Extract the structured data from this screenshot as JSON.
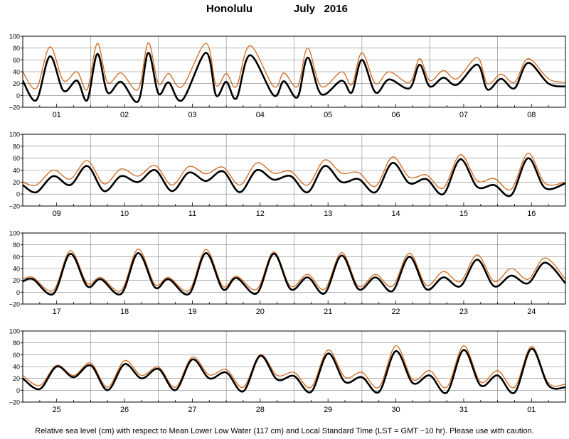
{
  "title": {
    "location": "Honolulu",
    "period": "July   2016"
  },
  "footer": "Relative sea level (cm) with respect to Mean Lower Low Water (117 cm) and Local Standard Time (LST = GMT −10 hr). Please use with caution.",
  "colors": {
    "predicted": "#000000",
    "observed": "#d2691e",
    "grid": "#808080",
    "frame": "#000000"
  },
  "chart_data": [
    {
      "type": "line",
      "panel": 1,
      "ylim": [
        -20,
        100
      ],
      "yticks": [
        -20,
        0,
        20,
        40,
        60,
        80,
        100
      ],
      "day_labels": [
        "01",
        "02",
        "03",
        "04",
        "05",
        "06",
        "07",
        "08"
      ],
      "x_unit": "day of July 2016 (fractional)",
      "x_range": [
        0.5,
        8.5
      ],
      "series": [
        {
          "key": "predicted",
          "x": [
            0.5,
            0.7,
            0.9,
            1.1,
            1.3,
            1.45,
            1.6,
            1.75,
            1.95,
            2.2,
            2.35,
            2.5,
            2.65,
            2.85,
            3.2,
            3.35,
            3.5,
            3.65,
            3.85,
            4.2,
            4.35,
            4.55,
            4.7,
            4.9,
            5.2,
            5.35,
            5.5,
            5.7,
            5.9,
            6.2,
            6.35,
            6.5,
            6.7,
            6.9,
            7.2,
            7.35,
            7.55,
            7.75,
            7.95,
            8.25,
            8.5
          ],
          "y": [
            25,
            -8,
            66,
            8,
            25,
            -8,
            70,
            5,
            23,
            -10,
            72,
            3,
            22,
            -8,
            72,
            0,
            23,
            -5,
            68,
            0,
            24,
            -3,
            64,
            2,
            25,
            5,
            60,
            5,
            27,
            12,
            52,
            15,
            30,
            18,
            52,
            10,
            28,
            12,
            55,
            20,
            15
          ]
        },
        {
          "key": "observed",
          "x": [
            0.5,
            0.7,
            0.9,
            1.1,
            1.3,
            1.45,
            1.6,
            1.75,
            1.95,
            2.2,
            2.35,
            2.5,
            2.65,
            2.85,
            3.2,
            3.35,
            3.5,
            3.65,
            3.85,
            4.2,
            4.35,
            4.55,
            4.7,
            4.9,
            5.2,
            5.35,
            5.5,
            5.7,
            5.9,
            6.2,
            6.35,
            6.5,
            6.7,
            6.9,
            7.2,
            7.35,
            7.55,
            7.75,
            7.95,
            8.25,
            8.5
          ],
          "y": [
            40,
            12,
            82,
            25,
            40,
            10,
            88,
            22,
            38,
            10,
            89,
            20,
            37,
            15,
            88,
            17,
            37,
            15,
            84,
            15,
            38,
            15,
            80,
            15,
            40,
            18,
            72,
            20,
            40,
            22,
            62,
            25,
            42,
            28,
            64,
            20,
            36,
            22,
            62,
            28,
            22
          ]
        }
      ]
    },
    {
      "type": "line",
      "panel": 2,
      "ylim": [
        -20,
        100
      ],
      "yticks": [
        -20,
        0,
        20,
        40,
        60,
        80,
        100
      ],
      "day_labels": [
        "09",
        "10",
        "11",
        "12",
        "13",
        "14",
        "15",
        "16"
      ],
      "x_unit": "day of July 2016 (fractional)",
      "x_range": [
        8.5,
        16.5
      ],
      "series": [
        {
          "key": "predicted",
          "x": [
            8.5,
            8.7,
            8.95,
            9.2,
            9.45,
            9.7,
            9.95,
            10.2,
            10.45,
            10.7,
            10.95,
            11.2,
            11.45,
            11.7,
            11.95,
            12.2,
            12.45,
            12.7,
            12.95,
            13.2,
            13.45,
            13.7,
            13.95,
            14.2,
            14.45,
            14.7,
            14.95,
            15.2,
            15.45,
            15.7,
            15.95,
            16.2,
            16.5
          ],
          "y": [
            15,
            3,
            30,
            15,
            47,
            5,
            30,
            20,
            40,
            5,
            36,
            22,
            38,
            3,
            40,
            24,
            30,
            3,
            47,
            20,
            25,
            3,
            52,
            18,
            25,
            0,
            58,
            12,
            15,
            -2,
            60,
            10,
            18
          ]
        },
        {
          "key": "observed",
          "x": [
            8.5,
            8.7,
            8.95,
            9.2,
            9.45,
            9.7,
            9.95,
            10.2,
            10.45,
            10.7,
            10.95,
            11.2,
            11.45,
            11.7,
            11.95,
            12.2,
            12.45,
            12.7,
            12.95,
            13.2,
            13.45,
            13.7,
            13.95,
            14.2,
            14.45,
            14.7,
            14.95,
            15.2,
            15.45,
            15.7,
            15.95,
            16.2,
            16.5
          ],
          "y": [
            20,
            15,
            40,
            25,
            56,
            17,
            42,
            30,
            48,
            15,
            46,
            34,
            45,
            15,
            52,
            35,
            38,
            15,
            57,
            35,
            36,
            13,
            62,
            28,
            32,
            10,
            66,
            22,
            26,
            8,
            68,
            18,
            20
          ]
        }
      ]
    },
    {
      "type": "line",
      "panel": 3,
      "ylim": [
        -20,
        100
      ],
      "yticks": [
        -20,
        0,
        20,
        40,
        60,
        80,
        100
      ],
      "day_labels": [
        "17",
        "18",
        "19",
        "20",
        "21",
        "22",
        "23",
        "24"
      ],
      "x_unit": "day of July 2016 (fractional)",
      "x_range": [
        16.5,
        24.5
      ],
      "series": [
        {
          "key": "predicted",
          "x": [
            16.5,
            16.65,
            16.95,
            17.2,
            17.45,
            17.65,
            17.95,
            18.2,
            18.45,
            18.65,
            18.95,
            19.2,
            19.45,
            19.65,
            19.95,
            20.2,
            20.45,
            20.7,
            20.95,
            21.2,
            21.45,
            21.7,
            21.95,
            22.2,
            22.45,
            22.7,
            22.95,
            23.2,
            23.45,
            23.7,
            23.95,
            24.2,
            24.5
          ],
          "y": [
            18,
            22,
            -3,
            65,
            10,
            22,
            -3,
            66,
            8,
            22,
            -3,
            66,
            5,
            24,
            -2,
            65,
            5,
            25,
            -2,
            62,
            5,
            25,
            2,
            60,
            5,
            25,
            10,
            55,
            10,
            28,
            15,
            50,
            15
          ]
        },
        {
          "key": "observed",
          "x": [
            16.5,
            16.65,
            16.95,
            17.2,
            17.45,
            17.65,
            17.95,
            18.2,
            18.45,
            18.65,
            18.95,
            19.2,
            19.45,
            19.65,
            19.95,
            20.2,
            20.45,
            20.7,
            20.95,
            21.2,
            21.45,
            21.7,
            21.95,
            22.2,
            22.45,
            22.7,
            22.95,
            23.2,
            23.45,
            23.7,
            23.95,
            24.2,
            24.5
          ],
          "y": [
            22,
            25,
            3,
            70,
            15,
            25,
            3,
            73,
            13,
            25,
            3,
            72,
            10,
            27,
            5,
            68,
            10,
            30,
            5,
            67,
            10,
            30,
            10,
            66,
            12,
            35,
            18,
            63,
            18,
            40,
            22,
            58,
            22
          ]
        }
      ]
    },
    {
      "type": "line",
      "panel": 4,
      "ylim": [
        -20,
        100
      ],
      "yticks": [
        -20,
        0,
        20,
        40,
        60,
        80,
        100
      ],
      "day_labels": [
        "25",
        "26",
        "27",
        "28",
        "29",
        "30",
        "31",
        "01"
      ],
      "x_unit": "day (24 Jul 2016 to 1 Aug 2016, fractional)",
      "x_range": [
        24.5,
        32.5
      ],
      "series": [
        {
          "key": "predicted",
          "x": [
            24.5,
            24.75,
            25.0,
            25.25,
            25.5,
            25.75,
            26.0,
            26.25,
            26.5,
            26.75,
            27.0,
            27.25,
            27.5,
            27.75,
            28.0,
            28.25,
            28.5,
            28.75,
            29.0,
            29.25,
            29.5,
            29.75,
            30.0,
            30.25,
            30.5,
            30.75,
            31.0,
            31.25,
            31.5,
            31.75,
            32.0,
            32.25,
            32.5
          ],
          "y": [
            20,
            2,
            40,
            22,
            42,
            0,
            44,
            20,
            36,
            0,
            52,
            20,
            30,
            -2,
            58,
            18,
            24,
            -3,
            62,
            14,
            22,
            -3,
            66,
            12,
            25,
            -4,
            68,
            8,
            25,
            -4,
            70,
            8,
            5
          ]
        },
        {
          "key": "observed",
          "x": [
            24.5,
            24.75,
            25.0,
            25.25,
            25.5,
            25.75,
            26.0,
            26.25,
            26.5,
            26.75,
            27.0,
            27.25,
            27.5,
            27.75,
            28.0,
            28.25,
            28.5,
            28.75,
            29.0,
            29.25,
            29.5,
            29.75,
            30.0,
            30.25,
            30.5,
            30.75,
            31.0,
            31.25,
            31.5,
            31.75,
            32.0,
            32.25,
            32.5
          ],
          "y": [
            25,
            8,
            42,
            25,
            46,
            5,
            50,
            25,
            39,
            5,
            56,
            26,
            35,
            5,
            60,
            25,
            30,
            5,
            68,
            22,
            30,
            5,
            75,
            18,
            33,
            5,
            75,
            14,
            33,
            5,
            74,
            12,
            10
          ]
        }
      ]
    }
  ]
}
